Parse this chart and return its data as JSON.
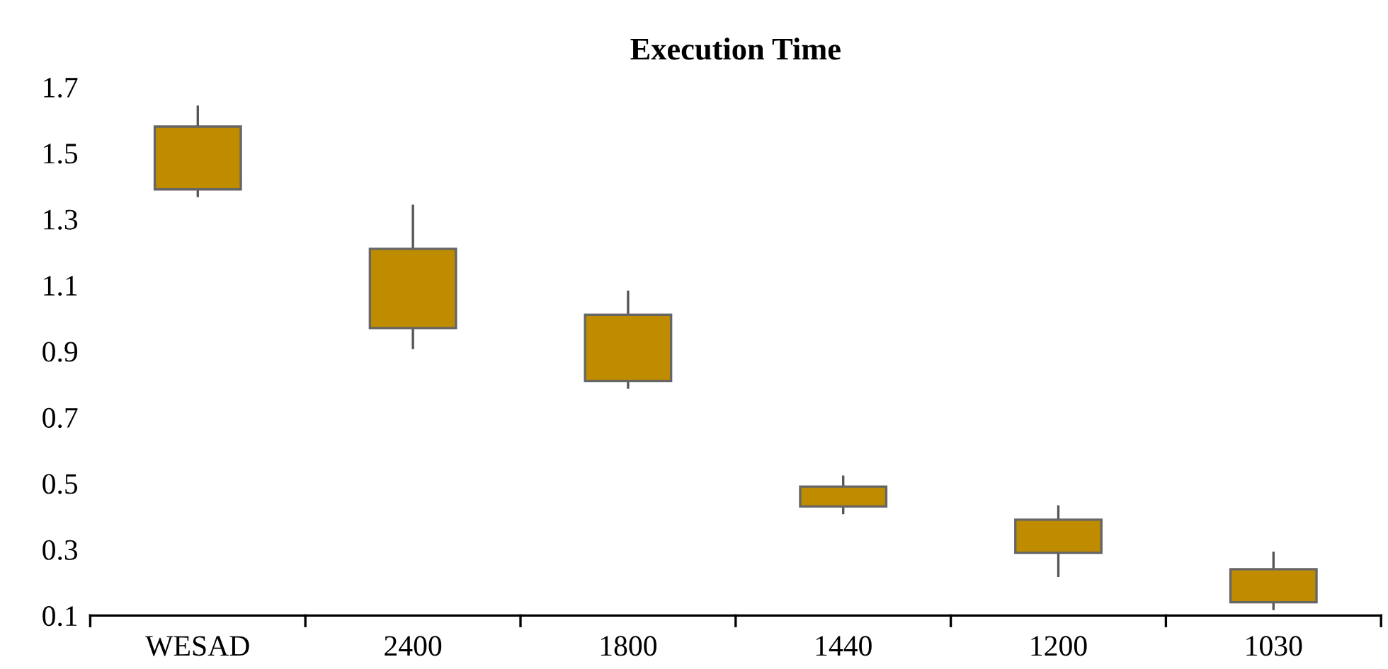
{
  "chart_data": {
    "type": "candlestick",
    "title": "Execution Time",
    "categories": [
      "WESAD",
      "2400",
      "1800",
      "1440",
      "1200",
      "1030"
    ],
    "ohlc": [
      [
        1.39,
        1.64,
        1.37,
        1.58
      ],
      [
        0.97,
        1.34,
        0.91,
        1.21
      ],
      [
        0.81,
        1.08,
        0.79,
        1.01
      ],
      [
        0.43,
        0.52,
        0.41,
        0.49
      ],
      [
        0.29,
        0.43,
        0.22,
        0.39
      ],
      [
        0.14,
        0.29,
        0.12,
        0.24
      ]
    ],
    "color": "#bf8c00",
    "ylim": [
      0.1,
      1.7
    ],
    "yticks": [
      0.1,
      0.3,
      0.5,
      0.7,
      0.9,
      1.1,
      1.3,
      1.5,
      1.7
    ],
    "grid": false,
    "legend": false
  }
}
